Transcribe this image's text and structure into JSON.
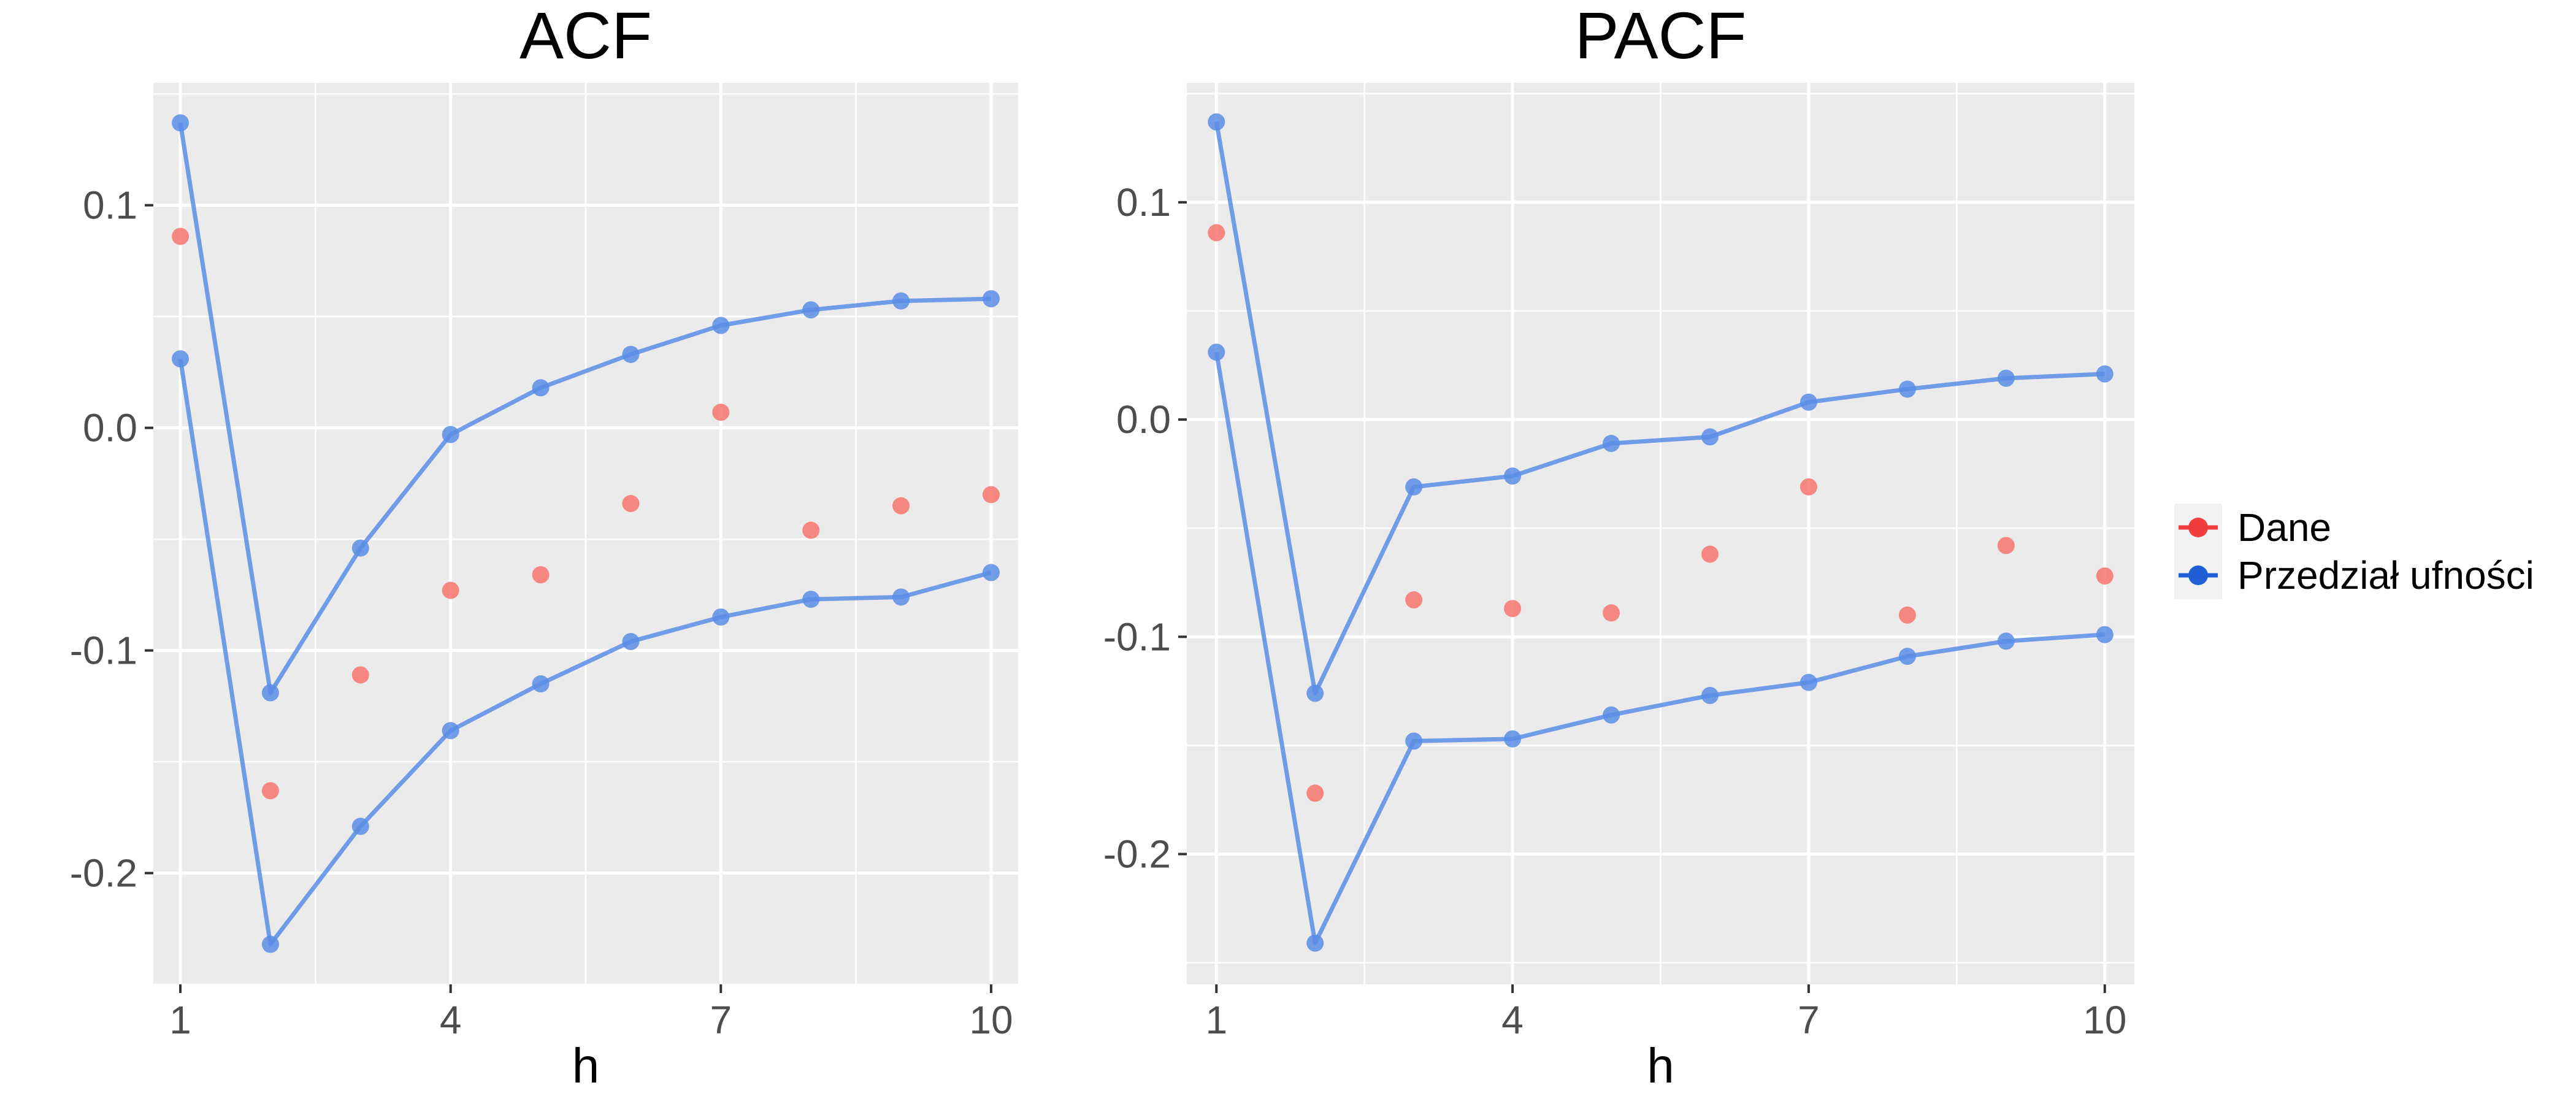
{
  "colors": {
    "panel_background": "#EBEBEB",
    "grid": "#FFFFFF",
    "dane": "#F8766D",
    "przedzial": "#5B8DE6",
    "tick_text": "#4D4D4D"
  },
  "legend": {
    "position": "right",
    "items": [
      {
        "label": "Dane",
        "color": "#F03C3C"
      },
      {
        "label": "Przedział ufności",
        "color": "#1F5FD6"
      }
    ]
  },
  "chart_data": [
    {
      "type": "scatter",
      "title": "ACF",
      "xlabel": "h",
      "ylabel": "",
      "xlim": [
        0.7,
        10.3
      ],
      "ylim": [
        -0.25,
        0.155
      ],
      "xticks": [
        1,
        4,
        7,
        10
      ],
      "xtick_labels": [
        "1",
        "4",
        "7",
        "10"
      ],
      "yticks": [
        -0.2,
        -0.1,
        0.0,
        0.1
      ],
      "ytick_labels": [
        "-0.2",
        "-0.1",
        "0.0",
        "0.1"
      ],
      "grid": true,
      "x": [
        1,
        2,
        3,
        4,
        5,
        6,
        7,
        8,
        9,
        10
      ],
      "series": [
        {
          "name": "Dane",
          "kind": "points",
          "values": [
            0.086,
            -0.163,
            -0.111,
            -0.073,
            -0.066,
            -0.034,
            0.007,
            -0.046,
            -0.035,
            -0.03
          ]
        },
        {
          "name": "Przedział ufności",
          "kind": "line+points",
          "values": [
            0.137,
            -0.119,
            -0.054,
            -0.003,
            0.018,
            0.033,
            0.046,
            0.053,
            0.057,
            0.058
          ]
        },
        {
          "name": "Przedział ufności",
          "kind": "line+points",
          "values": [
            0.031,
            -0.232,
            -0.179,
            -0.136,
            -0.115,
            -0.096,
            -0.085,
            -0.077,
            -0.076,
            -0.065
          ]
        }
      ]
    },
    {
      "type": "scatter",
      "title": "PACF",
      "xlabel": "h",
      "ylabel": "",
      "xlim": [
        0.7,
        10.3
      ],
      "ylim": [
        -0.26,
        0.155
      ],
      "xticks": [
        1,
        4,
        7,
        10
      ],
      "xtick_labels": [
        "1",
        "4",
        "7",
        "10"
      ],
      "yticks": [
        -0.2,
        -0.1,
        0.0,
        0.1
      ],
      "ytick_labels": [
        "-0.2",
        "-0.1",
        "0.0",
        "0.1"
      ],
      "grid": true,
      "x": [
        1,
        2,
        3,
        4,
        5,
        6,
        7,
        8,
        9,
        10
      ],
      "series": [
        {
          "name": "Dane",
          "kind": "points",
          "values": [
            0.086,
            -0.172,
            -0.083,
            -0.087,
            -0.089,
            -0.062,
            -0.031,
            -0.09,
            -0.058,
            -0.072
          ]
        },
        {
          "name": "Przedział ufności",
          "kind": "line+points",
          "values": [
            0.137,
            -0.126,
            -0.031,
            -0.026,
            -0.011,
            -0.008,
            0.008,
            0.014,
            0.019,
            0.021
          ]
        },
        {
          "name": "Przedział ufności",
          "kind": "line+points",
          "values": [
            0.031,
            -0.241,
            -0.148,
            -0.147,
            -0.136,
            -0.127,
            -0.121,
            -0.109,
            -0.102,
            -0.099
          ]
        }
      ]
    }
  ]
}
